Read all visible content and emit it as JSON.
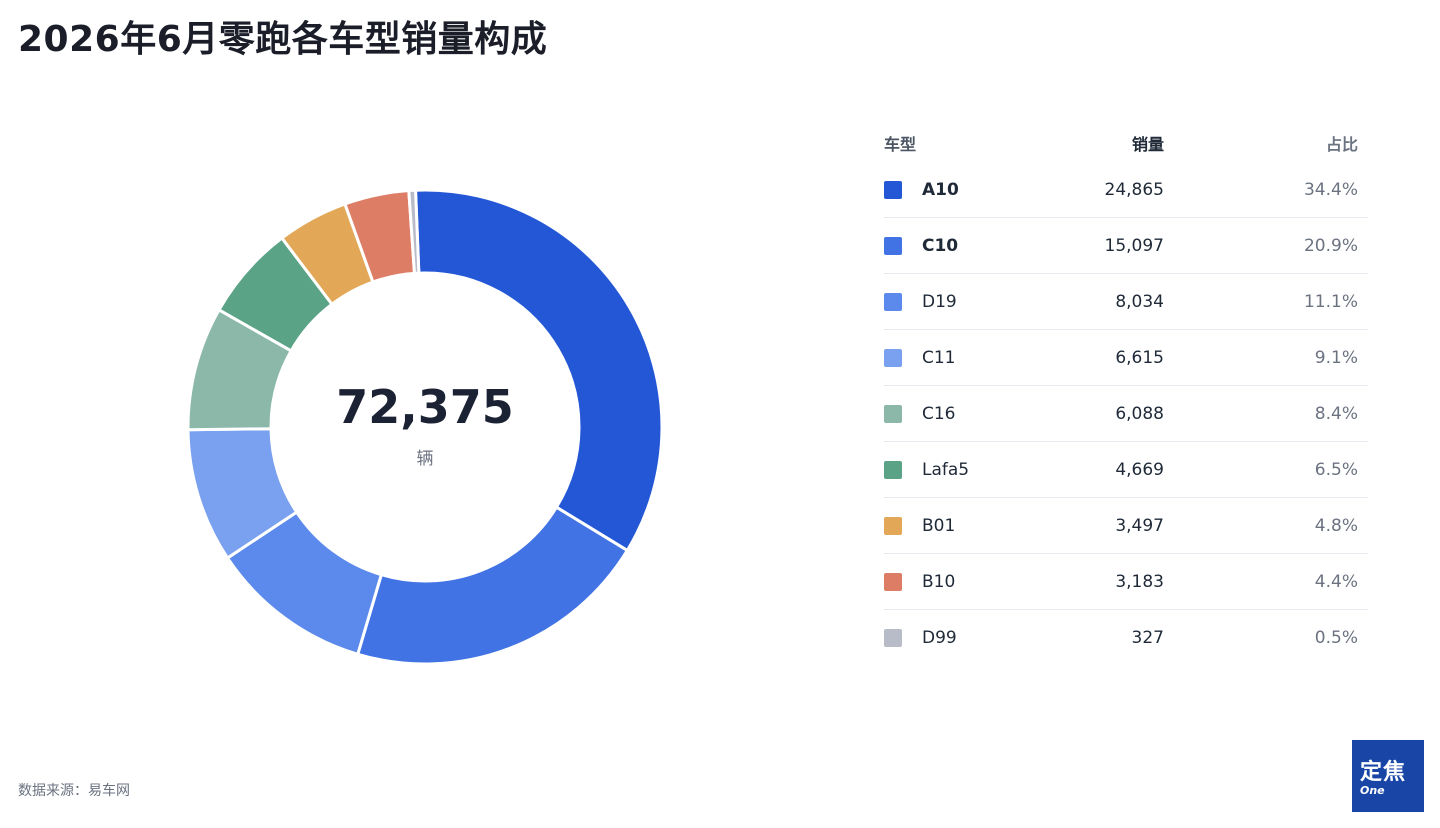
{
  "title": "2026年6月零跑各车型销量构成",
  "chart_data": {
    "type": "pie",
    "variant": "donut",
    "title": "2026年6月零跑各车型销量构成",
    "total": {
      "value": "72,375",
      "unit": "辆"
    },
    "legend_headers": {
      "model": "车型",
      "volume": "销量",
      "share": "占比"
    },
    "legend_position": "right",
    "series": [
      {
        "name": "A10",
        "value": 24865,
        "value_label": "24,865",
        "share": "34.4%",
        "color": "#2357d6"
      },
      {
        "name": "C10",
        "value": 15097,
        "value_label": "15,097",
        "share": "20.9%",
        "color": "#4173e5"
      },
      {
        "name": "D19",
        "value": 8034,
        "value_label": "8,034",
        "share": "11.1%",
        "color": "#5c8aec"
      },
      {
        "name": "C11",
        "value": 6615,
        "value_label": "6,615",
        "share": "9.1%",
        "color": "#7aa0f0"
      },
      {
        "name": "C16",
        "value": 6088,
        "value_label": "6,088",
        "share": "8.4%",
        "color": "#8cb8aa"
      },
      {
        "name": "Lafa5",
        "value": 4669,
        "value_label": "4,669",
        "share": "6.5%",
        "color": "#5aa386"
      },
      {
        "name": "B01",
        "value": 3497,
        "value_label": "3,497",
        "share": "4.8%",
        "color": "#e2a857"
      },
      {
        "name": "B10",
        "value": 3183,
        "value_label": "3,183",
        "share": "4.4%",
        "color": "#dd7d66"
      },
      {
        "name": "D99",
        "value": 327,
        "value_label": "327",
        "share": "0.5%",
        "color": "#b8bcc8"
      }
    ]
  },
  "source": "数据来源：易车网",
  "logo": {
    "main": "定焦",
    "sub": "One"
  }
}
